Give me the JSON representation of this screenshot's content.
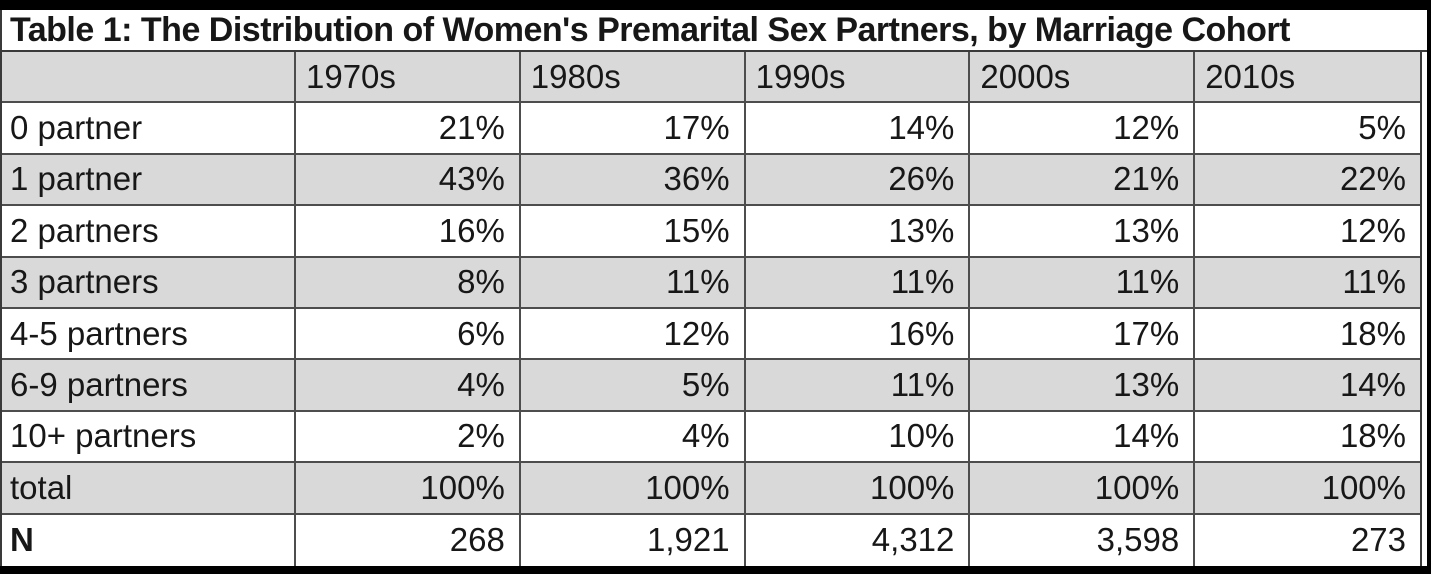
{
  "page": {
    "title": "Table 1: The Distribution of Women's Premarital Sex Partners, by Marriage Cohort"
  },
  "table": {
    "columns": [
      "",
      "1970s",
      "1980s",
      "1990s",
      "2000s",
      "2010s"
    ],
    "rows": [
      {
        "label": "0 partner",
        "values": [
          "21%",
          "17%",
          "14%",
          "12%",
          "5%"
        ]
      },
      {
        "label": "1 partner",
        "values": [
          "43%",
          "36%",
          "26%",
          "21%",
          "22%"
        ]
      },
      {
        "label": "2 partners",
        "values": [
          "16%",
          "15%",
          "13%",
          "13%",
          "12%"
        ]
      },
      {
        "label": "3 partners",
        "values": [
          "8%",
          "11%",
          "11%",
          "11%",
          "11%"
        ]
      },
      {
        "label": "4-5 partners",
        "values": [
          "6%",
          "12%",
          "16%",
          "17%",
          "18%"
        ]
      },
      {
        "label": "6-9 partners",
        "values": [
          "4%",
          "5%",
          "11%",
          "13%",
          "14%"
        ]
      },
      {
        "label": "10+ partners",
        "values": [
          "2%",
          "4%",
          "10%",
          "14%",
          "18%"
        ]
      },
      {
        "label": "total",
        "values": [
          "100%",
          "100%",
          "100%",
          "100%",
          "100%"
        ]
      },
      {
        "label": "N",
        "values": [
          "268",
          "1,921",
          "4,312",
          "3,598",
          "273"
        ],
        "bold_label": true
      }
    ]
  },
  "colors": {
    "stripe_bg": "#d9d9d9",
    "grid_line": "#4d4d4d",
    "frame": "#000000",
    "text": "#171717"
  }
}
